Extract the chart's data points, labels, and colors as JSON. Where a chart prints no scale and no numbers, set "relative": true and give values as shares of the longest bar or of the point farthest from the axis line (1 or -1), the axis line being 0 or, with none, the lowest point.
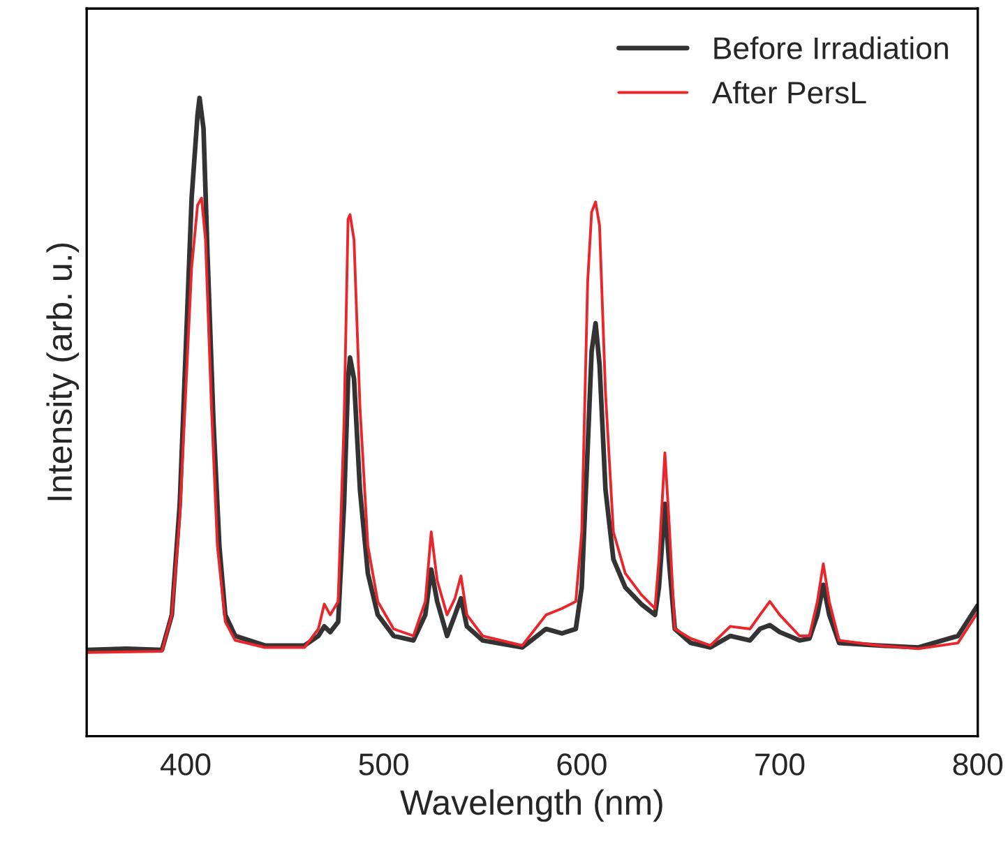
{
  "chart_data": {
    "type": "line",
    "xlabel": "Wavelength (nm)",
    "ylabel": "Intensity (arb. u.)",
    "relative": true,
    "xlim": [
      350,
      800
    ],
    "xticks": [
      400,
      500,
      600,
      700,
      800
    ],
    "legend": "top right",
    "grid": false,
    "tick_labels": "x",
    "series": [
      {
        "name": "Before Irradiation",
        "color": "#333333",
        "x": [
          350,
          370,
          388,
          393,
          397,
          400,
          403,
          406,
          407,
          409,
          411,
          414,
          417,
          420,
          425,
          440,
          460,
          467,
          470,
          473,
          477,
          480,
          482,
          483,
          485,
          488,
          492,
          497,
          505,
          515,
          521,
          524,
          527,
          532,
          536,
          539,
          542,
          550,
          570,
          582,
          590,
          597,
          600,
          603,
          605,
          607,
          609,
          612,
          616,
          622,
          630,
          637,
          639,
          642,
          644,
          647,
          655,
          665,
          675,
          685,
          690,
          695,
          700,
          710,
          715,
          719,
          722,
          725,
          730,
          750,
          770,
          790,
          800
        ],
        "values": [
          0.135,
          0.137,
          0.135,
          0.19,
          0.364,
          0.603,
          0.843,
          0.974,
          1.0,
          0.952,
          0.756,
          0.495,
          0.298,
          0.19,
          0.157,
          0.142,
          0.142,
          0.157,
          0.172,
          0.163,
          0.179,
          0.364,
          0.56,
          0.593,
          0.56,
          0.386,
          0.255,
          0.19,
          0.157,
          0.15,
          0.19,
          0.261,
          0.211,
          0.157,
          0.19,
          0.216,
          0.172,
          0.15,
          0.139,
          0.168,
          0.161,
          0.168,
          0.233,
          0.451,
          0.603,
          0.647,
          0.582,
          0.386,
          0.277,
          0.233,
          0.207,
          0.19,
          0.233,
          0.364,
          0.277,
          0.168,
          0.146,
          0.139,
          0.157,
          0.15,
          0.168,
          0.174,
          0.163,
          0.15,
          0.153,
          0.19,
          0.237,
          0.19,
          0.146,
          0.142,
          0.139,
          0.157,
          0.205
        ]
      },
      {
        "name": "After PersL",
        "color": "#e8262b",
        "x": [
          350,
          388,
          393,
          397,
          400,
          403,
          406,
          408,
          410,
          413,
          416,
          420,
          425,
          440,
          460,
          467,
          470,
          473,
          477,
          480,
          482,
          483,
          485,
          488,
          492,
          497,
          505,
          515,
          521,
          524,
          527,
          532,
          536,
          539,
          542,
          550,
          570,
          582,
          590,
          597,
          600,
          603,
          605,
          607,
          609,
          612,
          616,
          622,
          630,
          637,
          639,
          642,
          644,
          647,
          655,
          665,
          675,
          685,
          690,
          695,
          700,
          710,
          715,
          719,
          722,
          725,
          730,
          750,
          770,
          790,
          800
        ],
        "values": [
          0.131,
          0.133,
          0.19,
          0.342,
          0.538,
          0.734,
          0.832,
          0.843,
          0.778,
          0.516,
          0.298,
          0.179,
          0.15,
          0.139,
          0.139,
          0.168,
          0.207,
          0.19,
          0.211,
          0.495,
          0.81,
          0.817,
          0.778,
          0.516,
          0.298,
          0.211,
          0.168,
          0.157,
          0.211,
          0.32,
          0.244,
          0.19,
          0.216,
          0.251,
          0.19,
          0.157,
          0.142,
          0.19,
          0.2,
          0.211,
          0.32,
          0.712,
          0.821,
          0.837,
          0.8,
          0.538,
          0.32,
          0.255,
          0.222,
          0.2,
          0.277,
          0.444,
          0.342,
          0.168,
          0.153,
          0.142,
          0.172,
          0.168,
          0.19,
          0.211,
          0.19,
          0.157,
          0.157,
          0.211,
          0.27,
          0.211,
          0.15,
          0.142,
          0.137,
          0.146,
          0.194
        ]
      }
    ]
  }
}
